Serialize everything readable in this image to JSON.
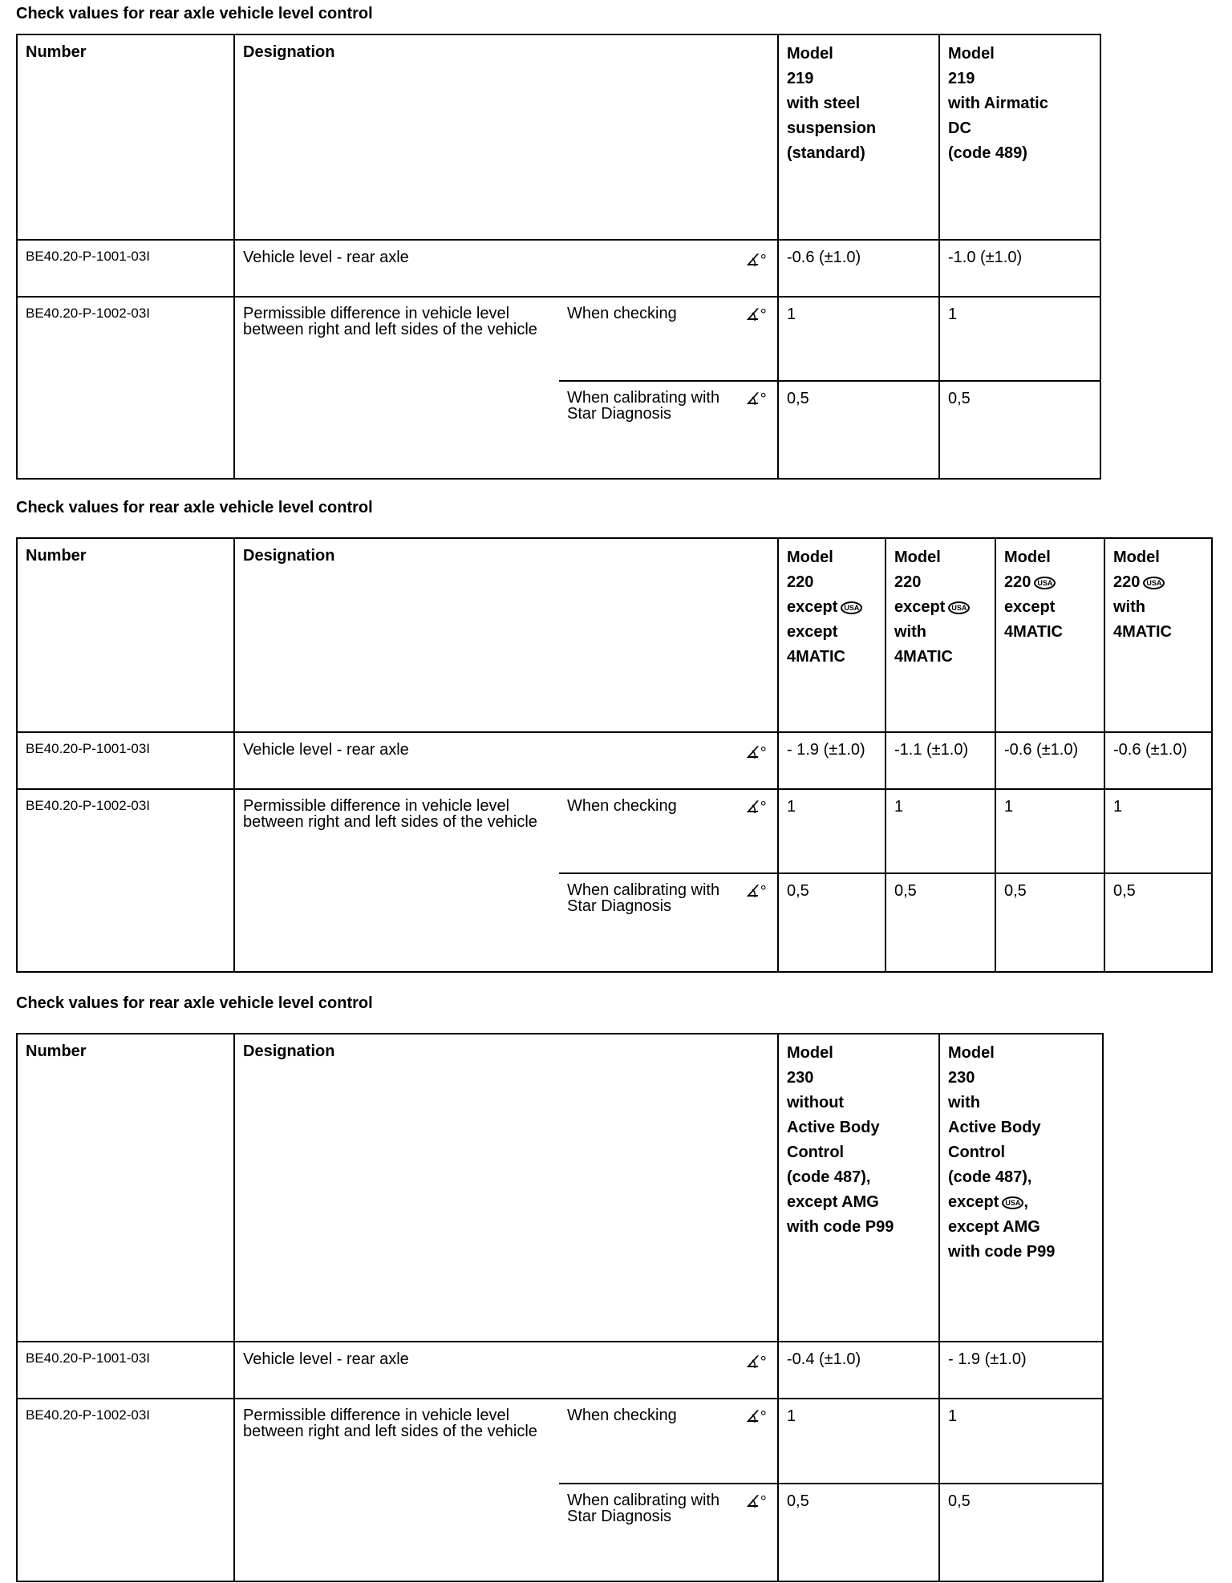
{
  "tables": [
    {
      "title": "Check values for rear axle vehicle level control",
      "headers": {
        "number": "Number",
        "designation": "Designation"
      },
      "models": [
        [
          {
            "t": "Model"
          },
          {
            "t": "219"
          },
          {
            "t": "with steel"
          },
          {
            "t": "suspension"
          },
          {
            "t": "(standard)"
          }
        ],
        [
          {
            "t": "Model"
          },
          {
            "t": "219"
          },
          {
            "t": "with Airmatic"
          },
          {
            "t": "DC"
          },
          {
            "t": "(code 489)"
          }
        ]
      ],
      "row1": {
        "number": "BE40.20-P-1001-03I",
        "designation": "Vehicle level - rear axle",
        "unit_icon": "angle-degree-icon",
        "values": [
          "-0.6 (±1.0)",
          "-1.0 (±1.0)"
        ]
      },
      "row2": {
        "number": "BE40.20-P-1002-03I",
        "designation": "Permissible difference in vehicle level between right and left sides of the vehicle",
        "sub": [
          {
            "label": "When checking",
            "values": [
              "1",
              "1"
            ]
          },
          {
            "label": "When calibrating with Star Diagnosis",
            "values": [
              "0,5",
              "0,5"
            ]
          }
        ]
      }
    },
    {
      "title": "Check values for rear axle vehicle level control",
      "headers": {
        "number": "Number",
        "designation": "Designation"
      },
      "models": [
        [
          {
            "t": "Model"
          },
          {
            "t": "220"
          },
          {
            "t": "except",
            "usa": true
          },
          {
            "t": "except"
          },
          {
            "t": "4MATIC"
          }
        ],
        [
          {
            "t": "Model"
          },
          {
            "t": "220"
          },
          {
            "t": "except",
            "usa": true
          },
          {
            "t": "with"
          },
          {
            "t": "4MATIC"
          }
        ],
        [
          {
            "t": "Model"
          },
          {
            "t": "220",
            "usa": true
          },
          {
            "t": "except"
          },
          {
            "t": "4MATIC"
          }
        ],
        [
          {
            "t": "Model"
          },
          {
            "t": "220",
            "usa": true
          },
          {
            "t": "with"
          },
          {
            "t": "4MATIC"
          }
        ]
      ],
      "row1": {
        "number": "BE40.20-P-1001-03I",
        "designation": "Vehicle level - rear axle",
        "unit_icon": "angle-degree-icon",
        "values": [
          "- 1.9 (±1.0)",
          "-1.1 (±1.0)",
          "-0.6 (±1.0)",
          "-0.6 (±1.0)"
        ]
      },
      "row2": {
        "number": "BE40.20-P-1002-03I",
        "designation": "Permissible difference in vehicle level between right and left sides of the vehicle",
        "sub": [
          {
            "label": "When checking",
            "values": [
              "1",
              "1",
              "1",
              "1"
            ]
          },
          {
            "label": "When calibrating with Star Diagnosis",
            "values": [
              "0,5",
              "0,5",
              "0,5",
              "0,5"
            ]
          }
        ]
      }
    },
    {
      "title": "Check values for rear axle vehicle level control",
      "headers": {
        "number": "Number",
        "designation": "Designation"
      },
      "models": [
        [
          {
            "t": "Model"
          },
          {
            "t": "230"
          },
          {
            "t": "without"
          },
          {
            "t": "Active Body"
          },
          {
            "t": "Control"
          },
          {
            "t": "(code 487),"
          },
          {
            "t": "except AMG"
          },
          {
            "t": "with code P99"
          }
        ],
        [
          {
            "t": "Model"
          },
          {
            "t": "230"
          },
          {
            "t": "with"
          },
          {
            "t": "Active Body"
          },
          {
            "t": "Control"
          },
          {
            "t": "(code 487),"
          },
          {
            "t": "except",
            "usa": true,
            "after": ","
          },
          {
            "t": "except AMG"
          },
          {
            "t": "with code P99"
          }
        ]
      ],
      "row1": {
        "number": "BE40.20-P-1001-03I",
        "designation": "Vehicle level - rear axle",
        "unit_icon": "angle-degree-icon",
        "values": [
          "-0.4 (±1.0)",
          "- 1.9 (±1.0)"
        ]
      },
      "row2": {
        "number": "BE40.20-P-1002-03I",
        "designation": "Permissible difference in vehicle level between right and left sides of the vehicle",
        "sub": [
          {
            "label": "When checking",
            "values": [
              "1",
              "1"
            ]
          },
          {
            "label": "When calibrating with Star Diagnosis",
            "values": [
              "0,5",
              "0,5"
            ]
          }
        ]
      }
    }
  ],
  "usa_badge": "USA",
  "angle_symbol": "∡°"
}
